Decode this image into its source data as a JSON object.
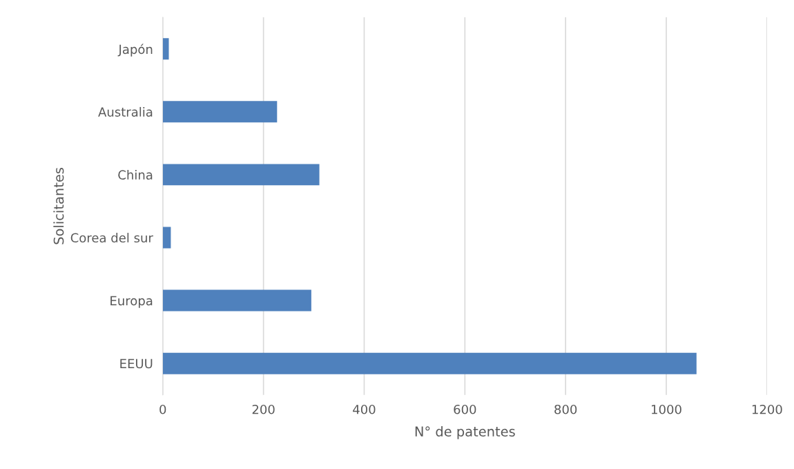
{
  "chart_data": {
    "type": "bar",
    "orientation": "horizontal",
    "xlabel": "N° de patentes",
    "ylabel": "Solicitantes",
    "categories": [
      "Japón",
      "Australia",
      "China",
      "Corea del sur",
      "Europa",
      "EEUU"
    ],
    "values": [
      12,
      227,
      311,
      16,
      295,
      1060
    ],
    "color": "#4f81bd",
    "xlim": [
      0,
      1200
    ],
    "xticks": [
      0,
      200,
      400,
      600,
      800,
      1000,
      1200
    ],
    "grid": "x",
    "legend": false
  }
}
